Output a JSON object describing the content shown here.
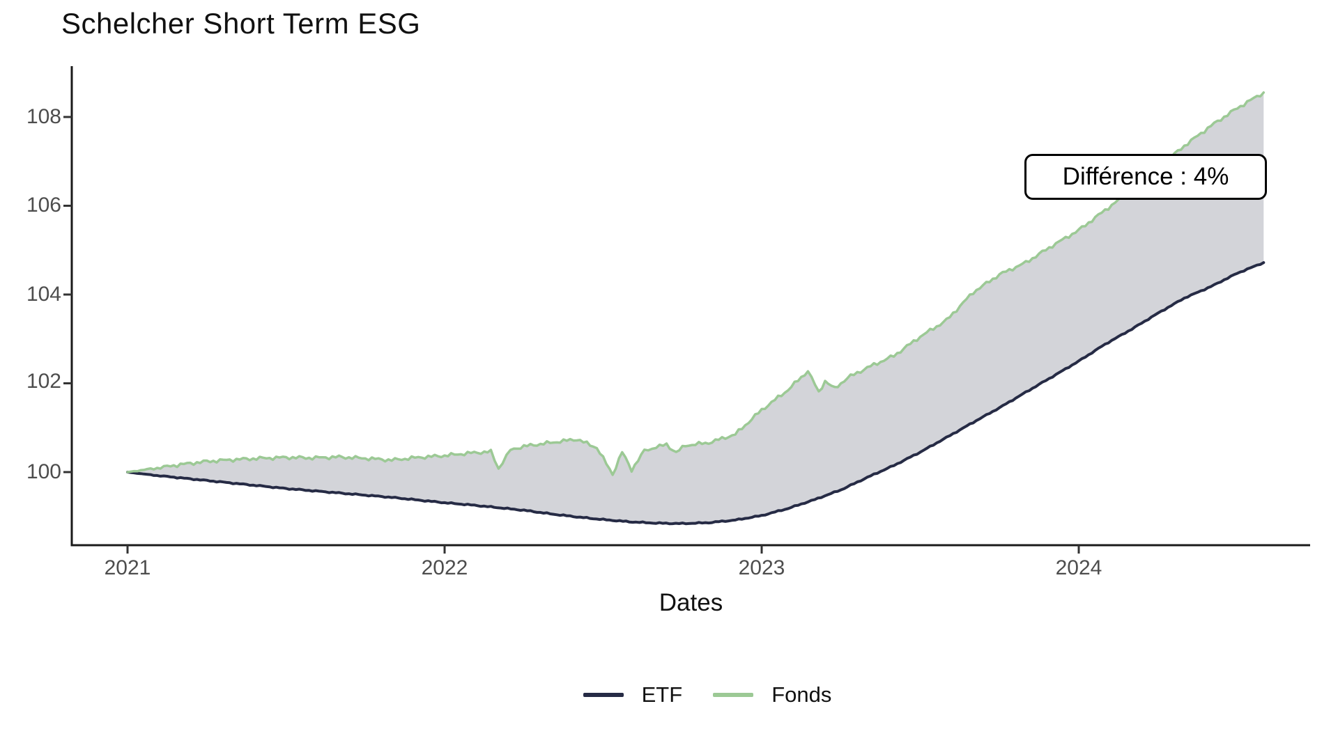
{
  "page": {
    "background": "#ffffff"
  },
  "chart_data": {
    "type": "area",
    "title": "Schelcher Short Term ESG",
    "xlabel": "Dates",
    "ylabel": "",
    "grid": "off",
    "legend_position": "bottom",
    "x_ticks": [
      "2021",
      "2022",
      "2023",
      "2024"
    ],
    "y_ticks": [
      "100",
      "102",
      "104",
      "106",
      "108"
    ],
    "x_range": [
      2020.82,
      2024.73
    ],
    "y_range": [
      98.35,
      109.18
    ],
    "annotation": {
      "label": "Différence : 4%"
    },
    "axis_color": "#1a1a1a",
    "tick_text_color": "#4d4d4d",
    "fill_between": {
      "between": [
        "ETF",
        "Fonds"
      ],
      "color": "#d3d4d9"
    },
    "series": [
      {
        "name": "ETF",
        "color": "#262b45",
        "x": [
          2021.0,
          2021.083,
          2021.167,
          2021.25,
          2021.333,
          2021.417,
          2021.5,
          2021.583,
          2021.667,
          2021.75,
          2021.833,
          2021.917,
          2022.0,
          2022.083,
          2022.167,
          2022.25,
          2022.333,
          2022.417,
          2022.5,
          2022.583,
          2022.667,
          2022.75,
          2022.833,
          2022.917,
          2023.0,
          2023.083,
          2023.167,
          2023.25,
          2023.333,
          2023.417,
          2023.5,
          2023.583,
          2023.667,
          2023.75,
          2023.833,
          2023.917,
          2024.0,
          2024.083,
          2024.167,
          2024.25,
          2024.333,
          2024.417,
          2024.5,
          2024.583
        ],
        "y": [
          100.0,
          99.93,
          99.87,
          99.81,
          99.75,
          99.69,
          99.63,
          99.58,
          99.53,
          99.48,
          99.43,
          99.37,
          99.31,
          99.26,
          99.2,
          99.14,
          99.06,
          98.99,
          98.93,
          98.88,
          98.85,
          98.84,
          98.86,
          98.92,
          99.02,
          99.18,
          99.38,
          99.6,
          99.88,
          100.15,
          100.45,
          100.78,
          101.12,
          101.45,
          101.8,
          102.15,
          102.5,
          102.88,
          103.22,
          103.58,
          103.92,
          104.18,
          104.48,
          104.72
        ]
      },
      {
        "name": "Fonds",
        "color": "#9cc995",
        "x": [
          2021.0,
          2021.083,
          2021.167,
          2021.25,
          2021.333,
          2021.417,
          2021.5,
          2021.583,
          2021.667,
          2021.75,
          2021.833,
          2021.917,
          2022.0,
          2022.083,
          2022.146,
          2022.17,
          2022.208,
          2022.25,
          2022.333,
          2022.417,
          2022.48,
          2022.53,
          2022.56,
          2022.59,
          2022.63,
          2022.667,
          2022.7,
          2022.73,
          2022.76,
          2022.833,
          2022.917,
          2023.0,
          2023.083,
          2023.146,
          2023.18,
          2023.2,
          2023.23,
          2023.27,
          2023.333,
          2023.417,
          2023.5,
          2023.583,
          2023.667,
          2023.75,
          2023.833,
          2023.917,
          2024.0,
          2024.083,
          2024.167,
          2024.25,
          2024.333,
          2024.417,
          2024.5,
          2024.583
        ],
        "y": [
          100.0,
          100.08,
          100.17,
          100.24,
          100.28,
          100.31,
          100.33,
          100.32,
          100.34,
          100.31,
          100.27,
          100.33,
          100.37,
          100.43,
          100.46,
          100.08,
          100.5,
          100.58,
          100.66,
          100.74,
          100.55,
          99.95,
          100.45,
          100.05,
          100.48,
          100.56,
          100.62,
          100.44,
          100.6,
          100.66,
          100.85,
          101.4,
          101.85,
          102.28,
          101.8,
          102.05,
          101.88,
          102.12,
          102.35,
          102.62,
          103.05,
          103.42,
          104.05,
          104.45,
          104.72,
          105.1,
          105.45,
          105.9,
          106.35,
          106.85,
          107.35,
          107.8,
          108.2,
          108.55
        ]
      }
    ]
  }
}
